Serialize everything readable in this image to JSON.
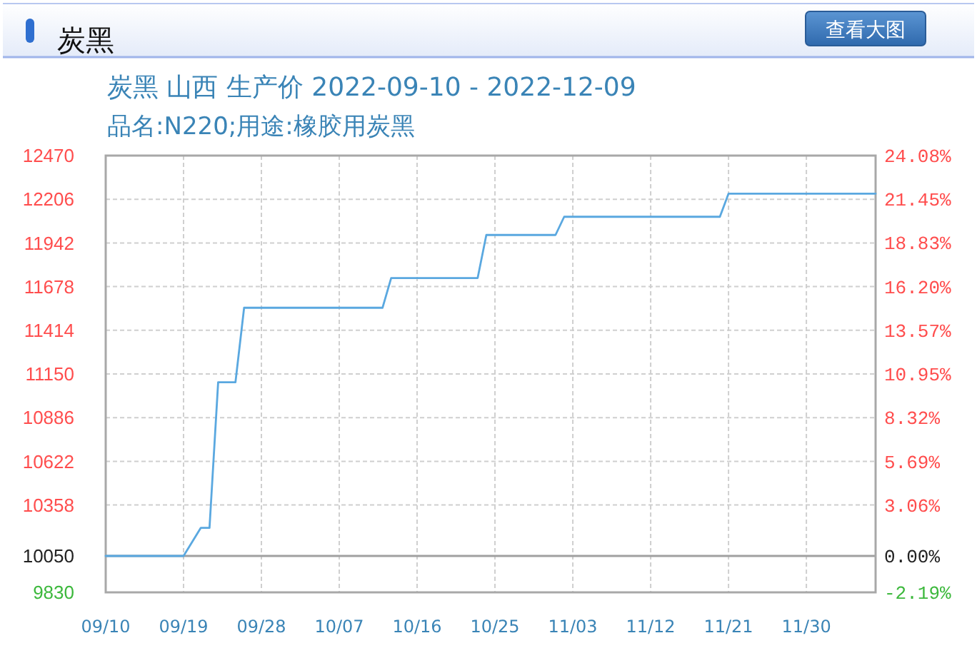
{
  "chart_data": {
    "type": "line",
    "title": "炭黑",
    "subtitle": "炭黑 山西 生产价 2022-09-10 - 2022-12-09",
    "annotations": [
      "品名:N220;用途:橡胶用炭黑",
      "查看大图"
    ],
    "series": [
      {
        "color": "#5aa8e0",
        "x": [
          "--09-10",
          "--09-19",
          "--09-21",
          "--09-22",
          "--09-23",
          "--09-25",
          "--09-26",
          "--10-12",
          "--10-13",
          "--10-23",
          "--10-24",
          "--11-01",
          "--11-02",
          "--11-20",
          "--11-21",
          "--12-08"
        ],
        "values": [
          10050,
          10050,
          10220,
          10220,
          11100,
          11100,
          11550,
          11550,
          11730,
          11730,
          11990,
          11990,
          12100,
          12100,
          12240,
          12240
        ]
      }
    ],
    "xlim": [
      "--09-10",
      "--12-08"
    ],
    "xticks": [
      {
        "value": "--09-10",
        "label": "09/10"
      },
      {
        "value": "--09-19",
        "label": "09/19"
      },
      {
        "value": "--09-28",
        "label": "09/28"
      },
      {
        "value": "--10-07",
        "label": "10/07"
      },
      {
        "value": "--10-16",
        "label": "10/16"
      },
      {
        "value": "--10-25",
        "label": "10/25"
      },
      {
        "value": "--11-03",
        "label": "11/03"
      },
      {
        "value": "--11-12",
        "label": "11/12"
      },
      {
        "value": "--11-21",
        "label": "11/21"
      },
      {
        "value": "--11-30",
        "label": "11/30"
      }
    ],
    "ylim": [
      9830,
      12470
    ],
    "yticks": [
      9830,
      10050,
      10358,
      10622,
      10886,
      11150,
      11414,
      11678,
      11942,
      12206,
      12470
    ],
    "y2lim": [
      -2.19,
      24.08
    ],
    "y2ticks": [
      {
        "value": -2.19,
        "label": "-2.19%"
      },
      {
        "value": 0,
        "label": "0.00%"
      },
      {
        "value": 3.06,
        "label": "3.06%"
      },
      {
        "value": 5.69,
        "label": "5.69%"
      },
      {
        "value": 8.32,
        "label": "8.32%"
      },
      {
        "value": 10.95,
        "label": "10.95%"
      },
      {
        "value": 13.57,
        "label": "13.57%"
      },
      {
        "value": 16.2,
        "label": "16.20%"
      },
      {
        "value": 18.83,
        "label": "18.83%"
      },
      {
        "value": 21.45,
        "label": "21.45%"
      },
      {
        "value": 24.08,
        "label": "24.08%"
      }
    ],
    "ref_lines": [
      {
        "axis": "y",
        "value": 10050,
        "color": "#a0a0a0"
      }
    ],
    "grid": true
  }
}
